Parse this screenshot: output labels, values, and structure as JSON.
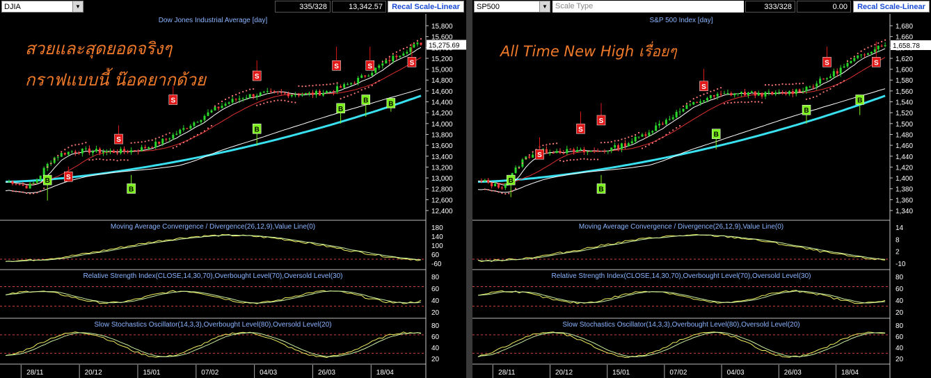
{
  "colors": {
    "bg": "#000000",
    "axis": "#ffffff",
    "title": "#8ab4ff",
    "candle_up": "#29d62a",
    "candle_down": "#ff3b3b",
    "ma_short": "#ffffff",
    "ma_mid": "#e03030",
    "ma_long": "#ffffff",
    "ma_trend": "#38e0f0",
    "psar": "#ff7a7a",
    "sell": "#e01818",
    "buy": "#7ff020",
    "osc1": "#f0f060",
    "osc2": "#c8f0a0",
    "level": "#d04040",
    "annotation": "#f07a2a"
  },
  "left": {
    "toolbar": {
      "symbol": "DJIA",
      "counter": "335/328",
      "value": "13,342.57",
      "recal": "Recal Scale-Linear"
    },
    "main": {
      "title": "Dow Jones Industrial Average [day]",
      "ticks": [
        "15,800",
        "15,600",
        "15,400",
        "15,200",
        "15,000",
        "14,800",
        "14,600",
        "14,400",
        "14,200",
        "14,000",
        "13,800",
        "13,600",
        "13,400",
        "13,200",
        "13,000",
        "12,800",
        "12,600",
        "12,400"
      ],
      "last_price": "15,275.69"
    },
    "macd": {
      "title": "Moving Average Convergence / Divergence(26,12,9),Value Line(0)",
      "ticks": [
        "180",
        "140",
        "100",
        "60",
        "-60"
      ]
    },
    "rsi": {
      "title": "Relative Strength Index(CLOSE,14,30,70),Overbought Level(70),Oversold Level(30)",
      "ticks": [
        "80",
        "60",
        "40",
        "20"
      ]
    },
    "sto": {
      "title": "Slow Stochastics Oscillator(14,3,3),Overbought Level(80),Oversold Level(20)",
      "ticks": [
        "80",
        "60",
        "40",
        "20"
      ]
    },
    "dates": [
      "28/11",
      "20/12",
      "15/01",
      "07/02",
      "04/03",
      "26/03",
      "18/04"
    ],
    "annotation": [
      "สวยและสุดยอดจริงๆ",
      "กราฟแบบนี้ น๊อคยากด้วย"
    ],
    "signals": [
      {
        "t": "S",
        "ch": 0.15,
        "y": 0.23,
        "ty": 0.17
      },
      {
        "t": "S",
        "ch": 0.27,
        "y": 0.47,
        "ty": 0.39
      },
      {
        "t": "S",
        "ch": 0.4,
        "y": 0.7,
        "ty": 0.62
      },
      {
        "t": "S",
        "ch": 0.6,
        "y": 0.85,
        "ty": 0.76
      },
      {
        "t": "S",
        "ch": 0.79,
        "y": 0.93,
        "ty": 0.82
      },
      {
        "t": "S",
        "ch": 0.87,
        "y": 0.93,
        "ty": 0.82
      },
      {
        "t": "S",
        "ch": 0.97,
        "y": 0.95,
        "ty": 0.84
      },
      {
        "t": "B",
        "ch": 0.1,
        "y": 0.03,
        "ty": 0.15
      },
      {
        "t": "B",
        "ch": 0.3,
        "y": 0.18,
        "ty": 0.1
      },
      {
        "t": "B",
        "ch": 0.6,
        "y": 0.35,
        "ty": 0.45
      },
      {
        "t": "B",
        "ch": 0.8,
        "y": 0.48,
        "ty": 0.57
      },
      {
        "t": "B",
        "ch": 0.86,
        "y": 0.52,
        "ty": 0.62
      },
      {
        "t": "B",
        "ch": 0.92,
        "y": 0.55,
        "ty": 0.6
      }
    ]
  },
  "right": {
    "toolbar": {
      "symbol": "SP500",
      "scale": "Scale Type",
      "counter": "333/328",
      "value": "0.00",
      "recal": "Recal Scale-Linear"
    },
    "main": {
      "title": "S&P 500 Index [day]",
      "ticks": [
        "1,680",
        "1,660",
        "1,640",
        "1,620",
        "1,600",
        "1,580",
        "1,560",
        "1,540",
        "1,520",
        "1,500",
        "1,480",
        "1,460",
        "1,440",
        "1,420",
        "1,400",
        "1,380",
        "1,360",
        "1,340"
      ],
      "last_price": "1,658.78"
    },
    "macd": {
      "title": "Moving Average Convergence / Divergence(26,12,9),Value Line(0)",
      "ticks": [
        "14",
        "8",
        "2",
        "-10"
      ]
    },
    "rsi": {
      "title": "Relative Strength Index(CLOSE,14,30,70),Overbought Level(70),Oversold Level(30)",
      "ticks": [
        "80",
        "60",
        "40",
        "20"
      ]
    },
    "sto": {
      "title": "Slow Stochastics Oscillator(14,3,3),Overbought Level(80),Oversold Level(20)",
      "ticks": [
        "80",
        "60",
        "40",
        "20"
      ]
    },
    "dates": [
      "28/11",
      "20/12",
      "15/01",
      "07/02",
      "04/03",
      "26/03",
      "18/04"
    ],
    "annotation": [
      "All Time New High เรื่อยๆ"
    ],
    "signals": [
      {
        "t": "S",
        "ch": 0.15,
        "y": 0.4,
        "ty": 0.3
      },
      {
        "t": "S",
        "ch": 0.25,
        "y": 0.55,
        "ty": 0.45
      },
      {
        "t": "S",
        "ch": 0.3,
        "y": 0.6,
        "ty": 0.5
      },
      {
        "t": "S",
        "ch": 0.55,
        "y": 0.8,
        "ty": 0.7
      },
      {
        "t": "S",
        "ch": 0.85,
        "y": 0.93,
        "ty": 0.84
      },
      {
        "t": "S",
        "ch": 0.97,
        "y": 0.96,
        "ty": 0.84
      },
      {
        "t": "B",
        "ch": 0.08,
        "y": 0.05,
        "ty": 0.15
      },
      {
        "t": "B",
        "ch": 0.3,
        "y": 0.18,
        "ty": 0.1
      },
      {
        "t": "B",
        "ch": 0.58,
        "y": 0.33,
        "ty": 0.42
      },
      {
        "t": "B",
        "ch": 0.8,
        "y": 0.48,
        "ty": 0.56
      },
      {
        "t": "B",
        "ch": 0.93,
        "y": 0.53,
        "ty": 0.62
      }
    ]
  }
}
